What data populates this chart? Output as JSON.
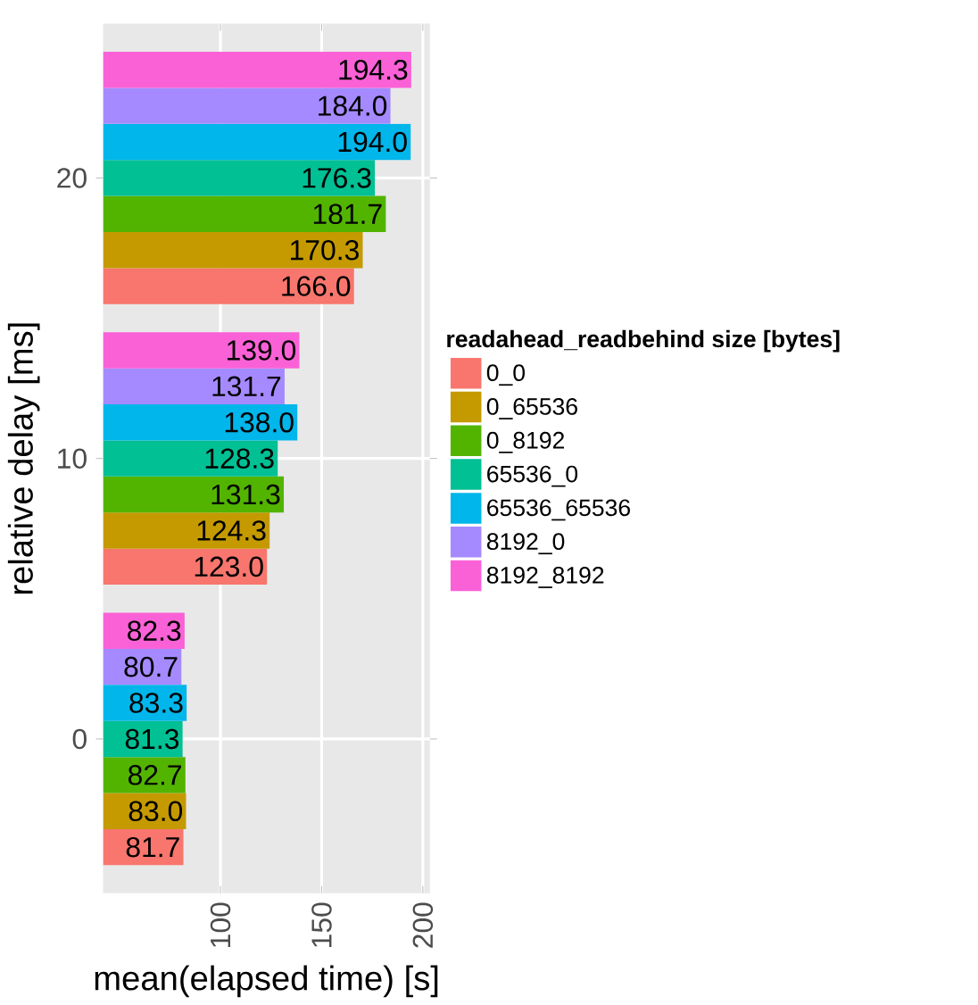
{
  "chart_data": {
    "type": "bar",
    "orientation": "horizontal",
    "xlabel": "mean(elapsed time) [s]",
    "ylabel": "relative delay [ms]",
    "legend_title": "readahead_readbehind size [bytes]",
    "categories": [
      "20",
      "10",
      "0"
    ],
    "xlim": [
      42,
      203.5
    ],
    "xticks": [
      100,
      150,
      200
    ],
    "grid": true,
    "legend": "right",
    "series": [
      {
        "name": "0_0",
        "color": "#F8766D",
        "values": [
          166.0,
          123.0,
          81.7
        ],
        "value_labels": [
          "166.0",
          "123.0",
          "81.7"
        ]
      },
      {
        "name": "0_65536",
        "color": "#C49A00",
        "values": [
          170.3,
          124.3,
          83.0
        ],
        "value_labels": [
          "170.3",
          "124.3",
          "83.0"
        ]
      },
      {
        "name": "0_8192",
        "color": "#53B400",
        "values": [
          181.7,
          131.3,
          82.7
        ],
        "value_labels": [
          "181.7",
          "131.3",
          "82.7"
        ]
      },
      {
        "name": "65536_0",
        "color": "#00C094",
        "values": [
          176.3,
          128.3,
          81.3
        ],
        "value_labels": [
          "176.3",
          "128.3",
          "81.3"
        ]
      },
      {
        "name": "65536_65536",
        "color": "#00B6EB",
        "values": [
          194.0,
          138.0,
          83.3
        ],
        "value_labels": [
          "194.0",
          "138.0",
          "83.3"
        ]
      },
      {
        "name": "8192_0",
        "color": "#A58AFF",
        "values": [
          184.0,
          131.7,
          80.7
        ],
        "value_labels": [
          "184.0",
          "131.7",
          "80.7"
        ]
      },
      {
        "name": "8192_8192",
        "color": "#FB61D7",
        "values": [
          194.3,
          139.0,
          82.3
        ],
        "value_labels": [
          "194.3",
          "139.0",
          "82.3"
        ]
      }
    ]
  }
}
